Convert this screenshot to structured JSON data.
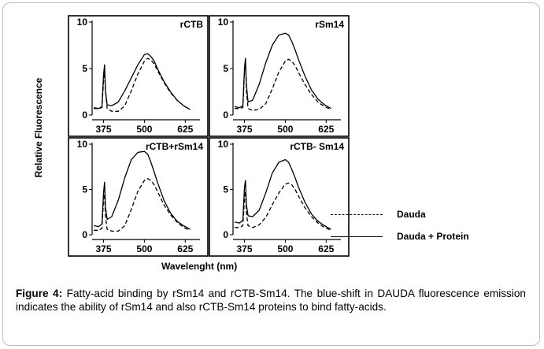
{
  "figure": {
    "ylabel": "Relative Fluorescence",
    "xlabel": "Wavelenght (nm)",
    "legend": [
      {
        "label": "Dauda",
        "style": "dashed"
      },
      {
        "label": "Dauda + Protein",
        "style": "solid"
      }
    ],
    "caption_label": "Figure 4:",
    "caption_text": " Fatty-acid binding by rSm14 and rCTB-Sm14. The blue-shift in DAUDA fluorescence emission indicates the ability of rSm14 and also rCTB-Sm14 proteins to bind fatty-acids."
  },
  "chart_data": [
    {
      "type": "line",
      "title": "rCTB",
      "xlim": [
        340,
        670
      ],
      "ylim": [
        0,
        10
      ],
      "xticks": [
        375,
        500,
        625
      ],
      "yticks": [
        0,
        5,
        10
      ],
      "series": [
        {
          "name": "Dauda",
          "style": "dashed",
          "x": [
            345,
            360,
            370,
            375,
            378,
            381,
            386,
            400,
            420,
            440,
            460,
            480,
            500,
            510,
            520,
            530,
            540,
            560,
            580,
            600,
            620,
            640
          ],
          "y": [
            0.7,
            0.7,
            0.8,
            3.6,
            4.9,
            2.6,
            0.7,
            0.4,
            0.4,
            1.0,
            2.6,
            4.4,
            5.8,
            6.1,
            5.9,
            5.5,
            4.8,
            3.5,
            2.4,
            1.6,
            1.0,
            0.6
          ]
        },
        {
          "name": "Dauda + Protein",
          "style": "solid",
          "x": [
            345,
            360,
            370,
            375,
            378,
            381,
            386,
            400,
            420,
            440,
            460,
            480,
            500,
            510,
            520,
            530,
            540,
            560,
            580,
            600,
            620,
            640
          ],
          "y": [
            0.8,
            0.7,
            0.9,
            4.3,
            5.4,
            2.6,
            1.1,
            1.0,
            1.4,
            2.6,
            4.0,
            5.4,
            6.5,
            6.6,
            6.3,
            5.8,
            5.0,
            3.6,
            2.5,
            1.6,
            1.0,
            0.6
          ]
        }
      ]
    },
    {
      "type": "line",
      "title": "rSm14",
      "xlim": [
        340,
        670
      ],
      "ylim": [
        0,
        10
      ],
      "xticks": [
        375,
        500,
        625
      ],
      "yticks": [
        0,
        5,
        10
      ],
      "series": [
        {
          "name": "Dauda",
          "style": "dashed",
          "x": [
            345,
            360,
            370,
            375,
            378,
            381,
            386,
            400,
            420,
            440,
            460,
            480,
            500,
            510,
            520,
            530,
            540,
            560,
            580,
            600,
            620,
            640
          ],
          "y": [
            0.7,
            0.7,
            0.8,
            4.6,
            5.7,
            2.6,
            0.7,
            0.5,
            0.6,
            1.2,
            2.8,
            4.6,
            5.8,
            6.0,
            5.8,
            5.3,
            4.6,
            3.3,
            2.2,
            1.4,
            0.9,
            0.6
          ]
        },
        {
          "name": "Dauda + Protein",
          "style": "solid",
          "x": [
            345,
            360,
            370,
            375,
            378,
            381,
            386,
            400,
            420,
            440,
            460,
            480,
            500,
            510,
            520,
            530,
            540,
            560,
            580,
            600,
            620,
            640
          ],
          "y": [
            0.9,
            0.8,
            1.0,
            5.0,
            6.1,
            3.2,
            1.4,
            1.6,
            3.3,
            5.6,
            7.5,
            8.6,
            8.8,
            8.6,
            7.9,
            7.0,
            6.0,
            4.2,
            2.7,
            1.7,
            1.1,
            0.7
          ]
        }
      ]
    },
    {
      "type": "line",
      "title": "rCTB+rSm14",
      "xlim": [
        340,
        670
      ],
      "ylim": [
        0,
        10
      ],
      "xticks": [
        375,
        500,
        625
      ],
      "yticks": [
        0,
        5,
        10
      ],
      "series": [
        {
          "name": "Dauda",
          "style": "dashed",
          "x": [
            345,
            360,
            370,
            375,
            378,
            381,
            386,
            400,
            420,
            440,
            460,
            480,
            500,
            510,
            520,
            530,
            540,
            560,
            580,
            600,
            620,
            640
          ],
          "y": [
            0.5,
            0.5,
            0.7,
            3.8,
            4.5,
            2.0,
            0.6,
            0.4,
            0.4,
            1.0,
            2.8,
            4.8,
            6.0,
            6.2,
            6.0,
            5.5,
            4.8,
            3.3,
            2.2,
            1.4,
            0.8,
            0.5
          ]
        },
        {
          "name": "Dauda + Protein",
          "style": "solid",
          "x": [
            345,
            360,
            370,
            375,
            378,
            381,
            386,
            400,
            420,
            440,
            460,
            480,
            500,
            510,
            520,
            530,
            540,
            560,
            580,
            600,
            620,
            640
          ],
          "y": [
            1.0,
            0.9,
            1.2,
            4.6,
            5.8,
            3.0,
            1.7,
            2.0,
            3.8,
            6.3,
            8.3,
            9.1,
            9.2,
            8.9,
            8.0,
            6.9,
            5.8,
            3.8,
            2.4,
            1.5,
            1.0,
            0.6
          ]
        }
      ]
    },
    {
      "type": "line",
      "title": "rCTB- Sm14",
      "xlim": [
        340,
        670
      ],
      "ylim": [
        0,
        10
      ],
      "xticks": [
        375,
        500,
        625
      ],
      "yticks": [
        0,
        5,
        10
      ],
      "series": [
        {
          "name": "Dauda",
          "style": "dashed",
          "x": [
            345,
            360,
            370,
            375,
            378,
            381,
            386,
            400,
            420,
            440,
            460,
            480,
            500,
            510,
            520,
            530,
            540,
            560,
            580,
            600,
            620,
            640
          ],
          "y": [
            0.8,
            0.8,
            1.0,
            3.9,
            4.8,
            2.4,
            1.0,
            0.8,
            1.1,
            1.9,
            3.3,
            4.6,
            5.6,
            5.7,
            5.5,
            5.0,
            4.3,
            3.0,
            2.0,
            1.3,
            0.8,
            0.5
          ]
        },
        {
          "name": "Dauda + Protein",
          "style": "solid",
          "x": [
            345,
            360,
            370,
            375,
            378,
            381,
            386,
            400,
            420,
            440,
            460,
            480,
            500,
            510,
            520,
            530,
            540,
            560,
            580,
            600,
            620,
            640
          ],
          "y": [
            1.4,
            1.3,
            1.6,
            5.2,
            6.0,
            3.3,
            2.1,
            2.0,
            2.7,
            4.6,
            6.8,
            8.0,
            8.3,
            8.0,
            7.2,
            6.3,
            5.3,
            3.6,
            2.3,
            1.5,
            1.0,
            0.6
          ]
        }
      ]
    }
  ]
}
